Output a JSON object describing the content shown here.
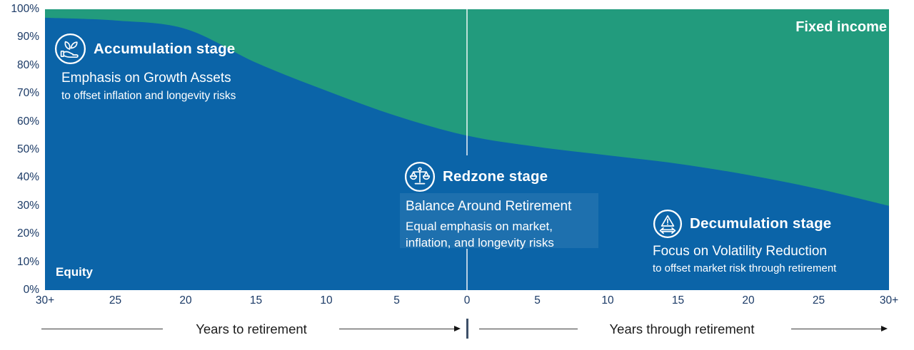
{
  "chart_data": {
    "type": "area",
    "stacked": true,
    "title": "",
    "xlabel_left": "Years to retirement",
    "xlabel_right": "Years through retirement",
    "x_tick_labels": [
      "30+",
      "25",
      "20",
      "15",
      "10",
      "5",
      "0",
      "5",
      "10",
      "15",
      "20",
      "25",
      "30+"
    ],
    "y_tick_labels": [
      "100%",
      "90%",
      "80%",
      "70%",
      "60%",
      "50%",
      "40%",
      "30%",
      "20%",
      "10%",
      "0%"
    ],
    "ylim": [
      0,
      100
    ],
    "grid": false,
    "retirement_divider_at": "0",
    "series": [
      {
        "name": "Equity",
        "color": "#0b64a8",
        "values": [
          97,
          96,
          93,
          81,
          71,
          62,
          55,
          51,
          48,
          45,
          41,
          36,
          30
        ]
      },
      {
        "name": "Fixed income",
        "color": "#229b7d",
        "values": [
          3,
          4,
          7,
          19,
          29,
          38,
          45,
          49,
          52,
          55,
          59,
          64,
          70
        ]
      }
    ]
  },
  "labels": {
    "equity": "Equity",
    "fixed_income": "Fixed income"
  },
  "stages": {
    "accumulation": {
      "icon": "hand-growth-icon",
      "title": "Accumulation stage",
      "line1": "Emphasis on Growth Assets",
      "line2": "to offset inflation and longevity risks"
    },
    "redzone": {
      "icon": "balance-scale-icon",
      "title": "Redzone stage",
      "line1": "Balance Around Retirement",
      "line2": "Equal emphasis on market,",
      "line3": "inflation, and longevity risks"
    },
    "decumulation": {
      "icon": "volatility-warning-icon",
      "title": "Decumulation stage",
      "line1": "Focus on Volatility Reduction",
      "line2": "to offset market risk through retirement"
    }
  },
  "timeline": {
    "left_label": "Years to retirement",
    "right_label": "Years through retirement"
  },
  "colors": {
    "equity_blue": "#0b64a8",
    "fixed_income_green": "#229b7d",
    "axis_text_navy": "#1b3a66",
    "divider_bar_navy": "#3d5068"
  }
}
